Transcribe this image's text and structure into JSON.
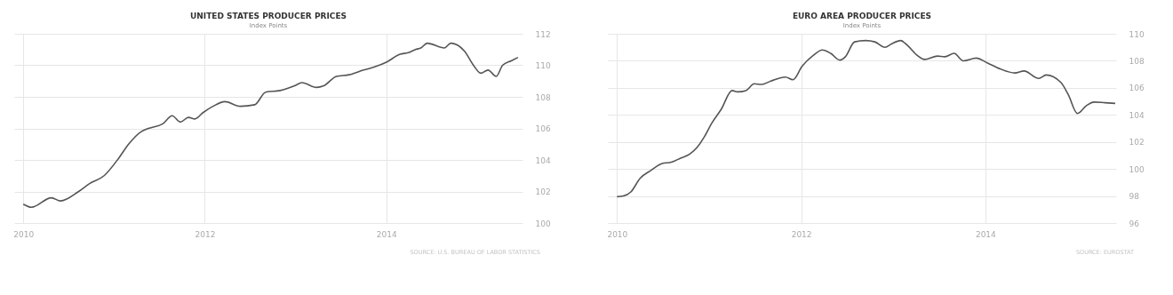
{
  "chart_data": [
    {
      "type": "line",
      "title": "UNITED STATES PRODUCER PRICES",
      "subtitle": "Index Points",
      "annotations": [
        "SOURCE: U.S. BUREAU OF LABOR STATISTICS"
      ],
      "grid": true,
      "xlim": [
        2009.9,
        2015.5
      ],
      "xticks": [
        2010,
        2012,
        2014
      ],
      "ylim": [
        100,
        112
      ],
      "yticks": [
        100,
        102,
        104,
        106,
        108,
        110,
        112
      ],
      "series": [
        {
          "color": "#555555",
          "x": [
            2010.0,
            2010.09,
            2010.31,
            2010.41,
            2010.61,
            2010.73,
            2010.89,
            2011.05,
            2011.16,
            2011.3,
            2011.38,
            2011.54,
            2011.64,
            2011.73,
            2011.82,
            2011.89,
            2011.98,
            2012.09,
            2012.22,
            2012.39,
            2012.55,
            2012.67,
            2012.83,
            2012.99,
            2013.07,
            2013.23,
            2013.31,
            2013.45,
            2013.59,
            2013.75,
            2013.87,
            2014.0,
            2014.15,
            2014.24,
            2014.32,
            2014.38,
            2014.45,
            2014.64,
            2014.71,
            2014.86,
            2014.96,
            2015.04,
            2015.12,
            2015.21,
            2015.28,
            2015.38,
            2015.45
          ],
          "values": [
            101.2,
            101.0,
            101.6,
            101.4,
            102.0,
            102.5,
            103.0,
            104.1,
            105.0,
            105.8,
            106.0,
            106.3,
            106.8,
            106.4,
            106.7,
            106.6,
            107.0,
            107.4,
            107.7,
            107.4,
            107.5,
            108.3,
            108.4,
            108.7,
            108.9,
            108.6,
            108.7,
            109.3,
            109.4,
            109.7,
            109.9,
            110.2,
            110.7,
            110.8,
            111.0,
            111.1,
            111.4,
            111.1,
            111.4,
            110.9,
            110.0,
            109.5,
            109.7,
            109.3,
            110.0,
            110.3,
            110.5
          ]
        }
      ]
    },
    {
      "type": "line",
      "title": "EURO AREA PRODUCER PRICES",
      "subtitle": "Index Points",
      "annotations": [
        "SOURCE: EUROSTAT"
      ],
      "grid": true,
      "xlim": [
        2009.9,
        2015.42
      ],
      "xticks": [
        2010,
        2012,
        2014
      ],
      "ylim": [
        96,
        110
      ],
      "yticks": [
        96,
        98,
        100,
        102,
        104,
        106,
        108,
        110
      ],
      "series": [
        {
          "color": "#555555",
          "x": [
            2010.0,
            2010.07,
            2010.15,
            2010.25,
            2010.37,
            2010.49,
            2010.59,
            2010.69,
            2010.79,
            2010.87,
            2010.95,
            2011.03,
            2011.13,
            2011.25,
            2011.31,
            2011.4,
            2011.49,
            2011.57,
            2011.67,
            2011.83,
            2011.91,
            2012.01,
            2012.13,
            2012.23,
            2012.32,
            2012.42,
            2012.48,
            2012.58,
            2012.7,
            2012.8,
            2012.91,
            2012.98,
            2013.08,
            2013.16,
            2013.26,
            2013.34,
            2013.48,
            2013.56,
            2013.66,
            2013.76,
            2013.9,
            2014.02,
            2014.16,
            2014.32,
            2014.42,
            2014.58,
            2014.66,
            2014.82,
            2014.9,
            2015.0,
            2015.1,
            2015.18,
            2015.3,
            2015.41
          ],
          "values": [
            97.95,
            98.0,
            98.3,
            99.3,
            99.9,
            100.4,
            100.5,
            100.8,
            101.1,
            101.6,
            102.4,
            103.4,
            104.4,
            105.8,
            105.7,
            105.8,
            106.3,
            106.25,
            106.5,
            106.8,
            106.6,
            107.6,
            108.4,
            108.8,
            108.55,
            108.05,
            108.3,
            109.4,
            109.5,
            109.4,
            109.0,
            109.25,
            109.5,
            109.1,
            108.4,
            108.1,
            108.35,
            108.3,
            108.55,
            108.0,
            108.2,
            107.85,
            107.4,
            107.1,
            107.25,
            106.7,
            106.95,
            106.4,
            105.5,
            104.1,
            104.7,
            104.95,
            104.9,
            104.85
          ]
        }
      ]
    }
  ]
}
